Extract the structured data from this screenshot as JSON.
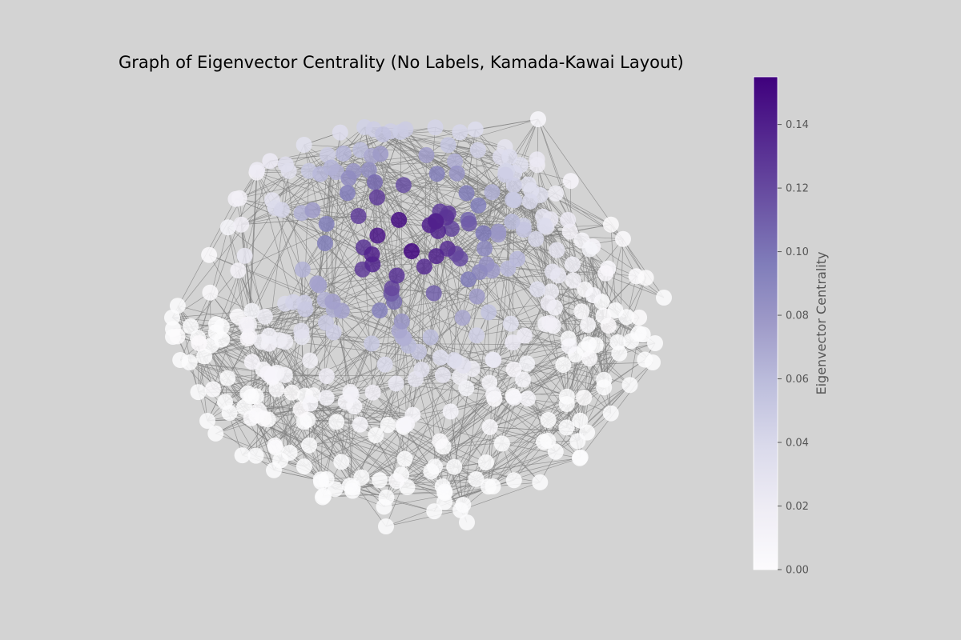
{
  "title": "Graph of Eigenvector Centrality (No Labels, Kamada-Kawai Layout)",
  "colorbar": {
    "label": "Eigenvector Centrality",
    "ticks": [
      "0.00",
      "0.02",
      "0.04",
      "0.06",
      "0.08",
      "0.10",
      "0.12",
      "0.14"
    ],
    "tick_values": [
      0.0,
      0.02,
      0.04,
      0.06,
      0.08,
      0.1,
      0.12,
      0.14
    ],
    "vmin": 0.0,
    "vmax": 0.155,
    "colormap": "Purples",
    "color_low": "#fcfbfd",
    "color_high": "#3f007d"
  },
  "graph": {
    "layout": "Kamada-Kawai",
    "node_labels": false,
    "edge_color": "#808080",
    "directed": true
  }
}
